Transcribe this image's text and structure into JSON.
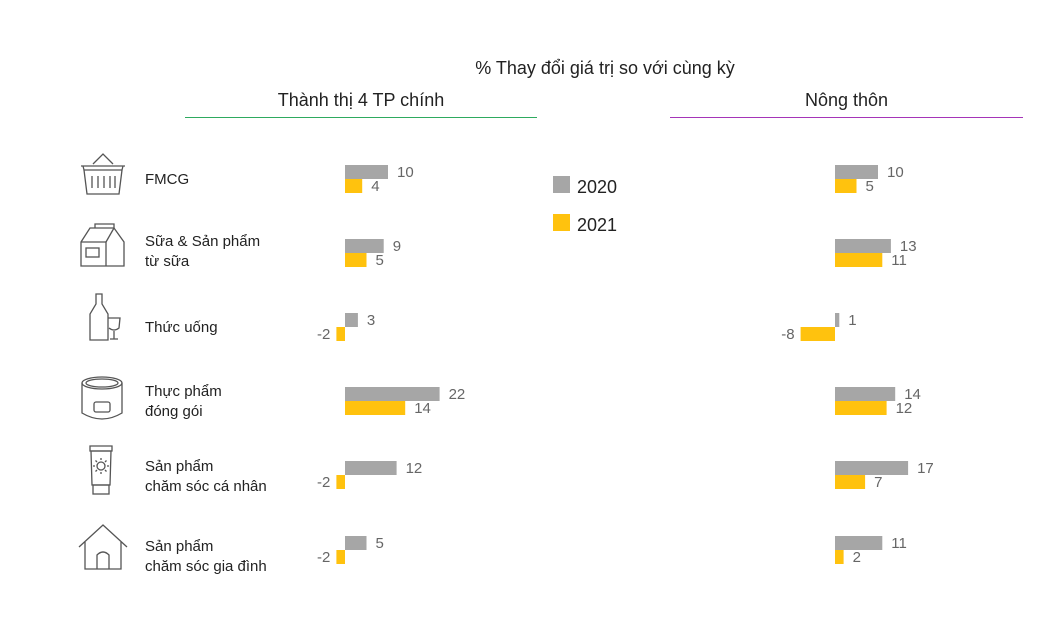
{
  "chart_data": {
    "type": "bar",
    "title": "% Thay đổi giá trị so với cùng kỳ",
    "panels": [
      "Thành thị 4 TP chính",
      "Nông thôn"
    ],
    "categories": [
      "FMCG",
      "Sữa & Sản phẩm từ sữa",
      "Thức uống",
      "Thực phẩm đóng gói",
      "Sản phẩm chăm sóc cá nhân",
      "Sản phẩm chăm sóc gia đình"
    ],
    "category_lines": [
      [
        "FMCG"
      ],
      [
        "Sữa & Sản phẩm",
        "từ sữa"
      ],
      [
        "Thức uống"
      ],
      [
        "Thực phẩm",
        "đóng gói"
      ],
      [
        "Sản phẩm",
        "chăm sóc cá nhân"
      ],
      [
        "Sản phẩm",
        "chăm sóc gia đình"
      ]
    ],
    "series": [
      {
        "name": "2020",
        "color": "#a6a6a6",
        "urban": [
          10,
          9,
          3,
          22,
          12,
          5
        ],
        "rural": [
          10,
          13,
          1,
          14,
          17,
          11
        ]
      },
      {
        "name": "2021",
        "color": "#ffc20e",
        "urban": [
          4,
          5,
          -2,
          14,
          -2,
          -2
        ],
        "rural": [
          5,
          11,
          -8,
          12,
          7,
          2
        ]
      }
    ],
    "legend_position": "center",
    "grid": false
  },
  "colors": {
    "urban_rule": "#2eaa5f",
    "rural_rule": "#a535b8",
    "icon_stroke": "#555555",
    "value_text": "#666666"
  },
  "icons": [
    "basket-icon",
    "milk-carton-icon",
    "bottle-glass-icon",
    "food-tin-icon",
    "lotion-tube-icon",
    "house-icon"
  ]
}
